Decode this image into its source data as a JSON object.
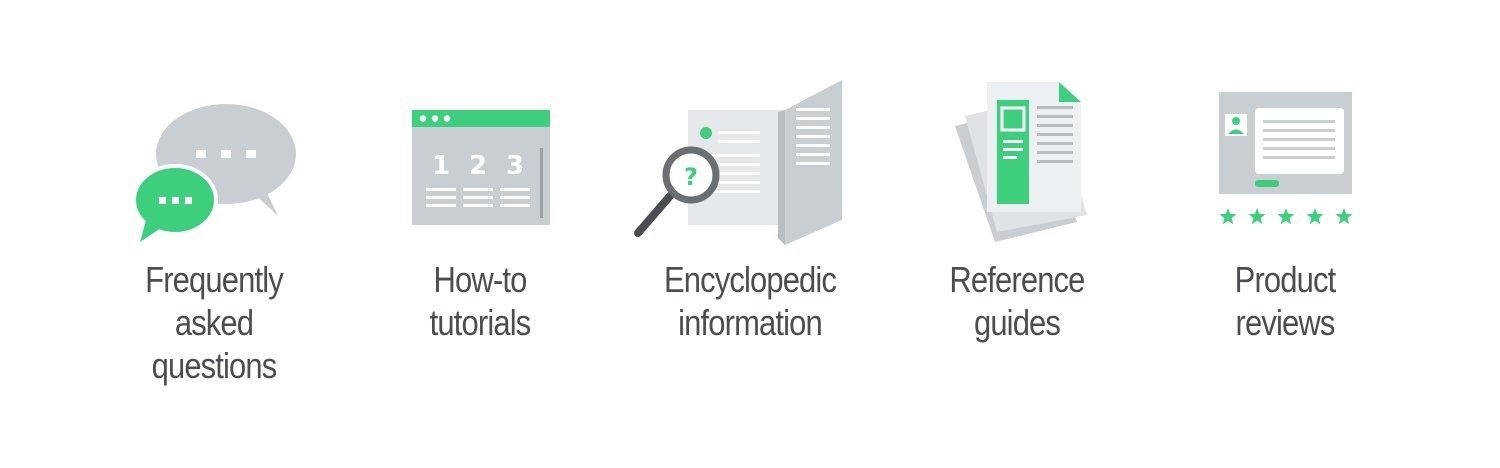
{
  "colors": {
    "accent_green": "#3ecf7e",
    "panel_gray": "#c9ced2",
    "light_gray": "#e6e9eb",
    "line_gray": "#9aa1a6",
    "text": "#4a4d52"
  },
  "items": [
    {
      "icon": "chat-bubbles-icon",
      "label_lines": [
        "Frequently",
        "asked",
        "questions"
      ]
    },
    {
      "icon": "tutorial-window-icon",
      "label_lines": [
        "How-to",
        "tutorials"
      ],
      "numbers": [
        "1",
        "2",
        "3"
      ]
    },
    {
      "icon": "magnifier-document-icon",
      "label_lines": [
        "Encyclopedic",
        "information"
      ],
      "question_mark": "?"
    },
    {
      "icon": "reference-papers-icon",
      "label_lines": [
        "Reference",
        "guides"
      ]
    },
    {
      "icon": "product-review-icon",
      "label_lines": [
        "Product",
        "reviews"
      ],
      "rating": 5,
      "rating_max": 5
    }
  ]
}
